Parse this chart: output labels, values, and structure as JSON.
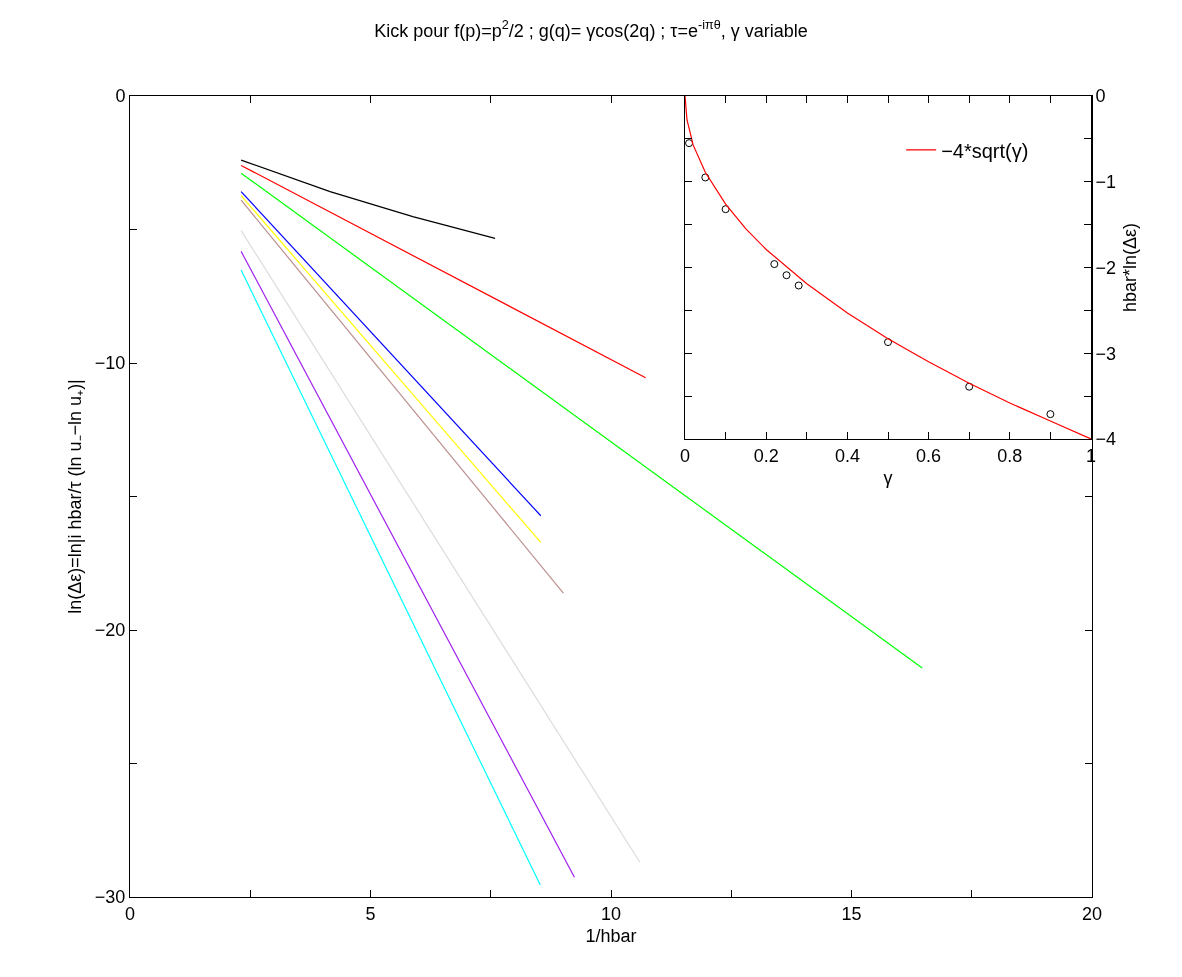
{
  "chart_data": [
    {
      "type": "line",
      "title": "Kick pour f(p)=p$^{2}$/2 ; g(q)= γcos(2q) ; τ=e$^{-iπθ}$, γ variable",
      "xlabel": "1/hbar",
      "ylabel": "ln(Δε)=ln|i hbar/τ (ln u₋−ln u₊)|",
      "xlim": [
        0,
        20
      ],
      "ylim": [
        -30,
        0
      ],
      "xticks": [
        0,
        {
          "value": 2.5,
          "label": null
        },
        5,
        {
          "value": 7.5,
          "label": null
        },
        10,
        {
          "value": 12.5,
          "label": null
        },
        15,
        {
          "value": 17.5,
          "label": null
        },
        20
      ],
      "yticks": [
        -30,
        {
          "value": -25,
          "label": null
        },
        -20,
        {
          "value": -15,
          "label": null
        },
        -10,
        {
          "value": -5,
          "label": null
        },
        0
      ],
      "legend": false,
      "grid": false,
      "series": [
        {
          "color": "#000000",
          "x": [
            2.31,
            4.16,
            5.88,
            7.59
          ],
          "values": [
            -2.4,
            -3.58,
            -4.52,
            -5.33
          ]
        },
        {
          "color": "#ff0000",
          "x": [
            2.31,
            10.72
          ],
          "values": [
            -2.6,
            -10.55
          ]
        },
        {
          "color": "#00ff00",
          "x": [
            2.31,
            16.47
          ],
          "values": [
            -2.89,
            -21.42
          ]
        },
        {
          "color": "#0000ff",
          "x": [
            2.31,
            8.54
          ],
          "values": [
            -3.58,
            -15.72
          ]
        },
        {
          "color": "#ffff00",
          "x": [
            2.31,
            8.54
          ],
          "values": [
            -3.73,
            -16.72
          ]
        },
        {
          "color": "#bc8f8f",
          "x": [
            2.31,
            9.01
          ],
          "values": [
            -3.9,
            -18.62
          ]
        },
        {
          "color": "#dcdcdc",
          "x": [
            2.31,
            10.6
          ],
          "values": [
            -5.04,
            -28.7
          ]
        },
        {
          "color": "#a020f0",
          "x": [
            2.31,
            9.24
          ],
          "values": [
            -5.82,
            -29.26
          ]
        },
        {
          "color": "#00ffff",
          "x": [
            2.31,
            8.53
          ],
          "values": [
            -6.52,
            -29.55
          ]
        }
      ]
    },
    {
      "type": "line",
      "xlabel": "γ",
      "ylabel": "hbar*ln(Δε)",
      "xlim": [
        0,
        1
      ],
      "ylim": [
        -4,
        0
      ],
      "xticks": [
        0,
        {
          "value": 0.1,
          "label": null
        },
        0.2,
        {
          "value": 0.3,
          "label": null
        },
        0.4,
        {
          "value": 0.5,
          "label": null
        },
        0.6,
        {
          "value": 0.7,
          "label": null
        },
        0.8,
        {
          "value": 0.9,
          "label": null
        },
        1
      ],
      "yticks": [
        -4,
        {
          "value": -3.5,
          "label": null
        },
        -3,
        {
          "value": -2.5,
          "label": null
        },
        -2,
        {
          "value": -1.5,
          "label": null
        },
        -1,
        {
          "value": -0.5,
          "label": null
        },
        0
      ],
      "legend": "top right",
      "grid": false,
      "series": [
        {
          "type": "scatter",
          "marker": "circle",
          "color": "#000000",
          "x": [
            0.01,
            0.05,
            0.1,
            0.22,
            0.25,
            0.28,
            0.5,
            0.7,
            0.9
          ],
          "values": [
            -0.55,
            -0.95,
            -1.32,
            -1.96,
            -2.09,
            -2.21,
            -2.87,
            -3.39,
            -3.71
          ]
        },
        {
          "name": "−4*sqrt(γ)",
          "color": "#ff0000",
          "x": [
            0,
            0.005,
            0.02,
            0.05,
            0.1,
            0.15,
            0.2,
            0.3,
            0.4,
            0.5,
            0.6,
            0.7,
            0.8,
            0.9,
            1
          ],
          "values": [
            0,
            -0.28,
            -0.57,
            -0.89,
            -1.26,
            -1.55,
            -1.79,
            -2.19,
            -2.53,
            -2.83,
            -3.1,
            -3.35,
            -3.58,
            -3.79,
            -4
          ]
        }
      ]
    }
  ]
}
